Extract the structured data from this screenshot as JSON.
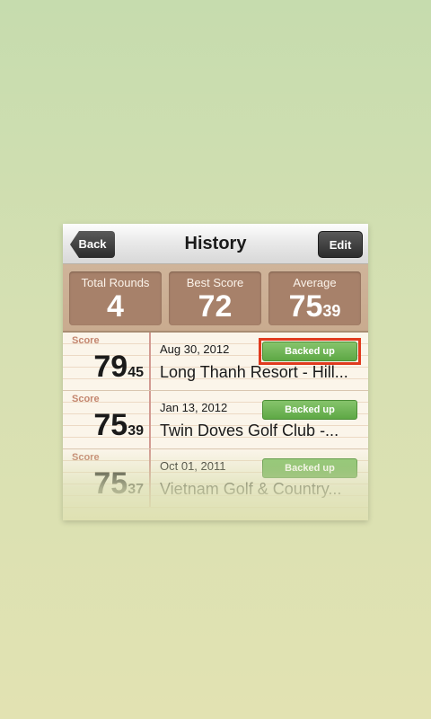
{
  "nav": {
    "title": "History",
    "back_label": "Back",
    "edit_label": "Edit"
  },
  "stats": {
    "total_rounds": {
      "label": "Total Rounds",
      "value": "4"
    },
    "best_score": {
      "label": "Best Score",
      "value": "72"
    },
    "average": {
      "label": "Average",
      "value": "75",
      "decimal": "39"
    }
  },
  "rounds": [
    {
      "score_label": "Score",
      "score": "79",
      "score_decimal": "45",
      "date": "Aug 30, 2012",
      "course": "Long Thanh Resort - Hill...",
      "backup_label": "Backed up"
    },
    {
      "score_label": "Score",
      "score": "75",
      "score_decimal": "39",
      "date": "Jan 13, 2012",
      "course": "Twin Doves Golf Club -...",
      "backup_label": "Backed up"
    },
    {
      "score_label": "Score",
      "score": "75",
      "score_decimal": "37",
      "date": "Oct 01, 2011",
      "course": "Vietnam Golf & Country...",
      "backup_label": "Backed up"
    }
  ],
  "colors": {
    "backup_green": "#5ea845",
    "highlight_red": "#e03a1e",
    "stat_brown": "#a7816a"
  }
}
